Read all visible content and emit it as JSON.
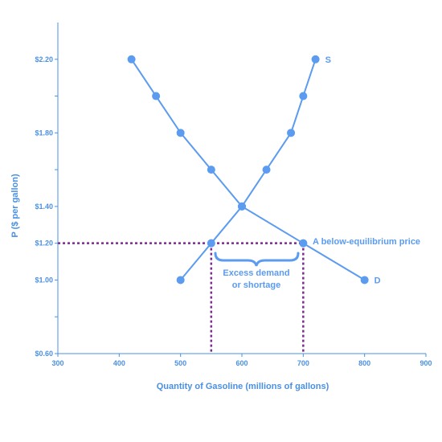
{
  "chart_data": {
    "type": "line",
    "xlabel": "Quantity of Gasoline (millions of gallons)",
    "ylabel": "P ($ per gallon)",
    "xlim": [
      300,
      900
    ],
    "ylim": [
      0.6,
      2.4
    ],
    "x_ticks": [
      300,
      400,
      500,
      600,
      700,
      800,
      900
    ],
    "x_tick_labels": [
      "300",
      "400",
      "500",
      "600",
      "700",
      "800",
      "900"
    ],
    "y_ticks": [
      0.6,
      1.0,
      1.2,
      1.4,
      1.8,
      2.2
    ],
    "y_tick_labels": [
      "$0.60",
      "$1.00",
      "$1.20",
      "$1.40",
      "$1.80",
      "$2.20"
    ],
    "y_minor_ticks": [
      0.8,
      1.6,
      2.0
    ],
    "grid": false,
    "series": [
      {
        "name": "D",
        "x": [
          420,
          460,
          500,
          550,
          600,
          700,
          800
        ],
        "y": [
          2.2,
          2.0,
          1.8,
          1.6,
          1.4,
          1.2,
          1.0
        ]
      },
      {
        "name": "S",
        "x": [
          500,
          550,
          600,
          640,
          680,
          700,
          720
        ],
        "y": [
          1.0,
          1.2,
          1.4,
          1.6,
          1.8,
          2.0,
          2.2
        ]
      }
    ],
    "reference_lines": {
      "price": 1.2,
      "quantities": [
        550,
        700
      ]
    },
    "annotations": {
      "below_equilibrium": "A below-equilibrium price",
      "shortage_line1": "Excess demand",
      "shortage_line2": "or shortage"
    }
  },
  "colors": {
    "line": "#5b9bf0",
    "axis": "#4a90e2",
    "dotted": "#7b2d8e",
    "tick_text": "#4a90e2"
  }
}
